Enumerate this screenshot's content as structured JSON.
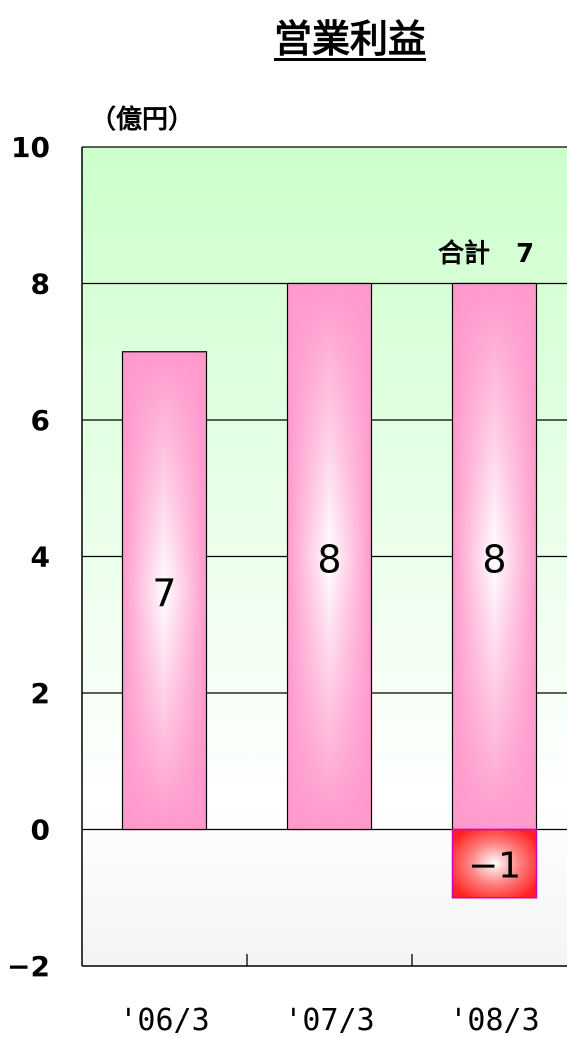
{
  "chart_data": {
    "type": "bar",
    "title": "営業利益",
    "unit_label": "（億円）",
    "categories": [
      "'06/3",
      "'07/3",
      "'08/3"
    ],
    "series": [
      {
        "values": [
          7,
          8,
          8
        ],
        "labels": [
          "7",
          "8",
          "8"
        ]
      },
      {
        "values": [
          null,
          null,
          -1
        ],
        "labels": [
          "",
          "",
          "−1"
        ]
      }
    ],
    "total_annotation": "合計　7",
    "ylim": [
      -2,
      10
    ],
    "yticks": [
      "10",
      "8",
      "6",
      "4",
      "2",
      "0",
      "−2"
    ],
    "ytick_values": [
      10,
      8,
      6,
      4,
      2,
      0,
      -2
    ],
    "grid": true,
    "legend": "none",
    "colors": {
      "positive_bar": "#ff99cc",
      "negative_bar": "#ff3333",
      "plot_bg_top": "#ccffcc",
      "plot_bg_bottom": "#ffffff"
    }
  }
}
